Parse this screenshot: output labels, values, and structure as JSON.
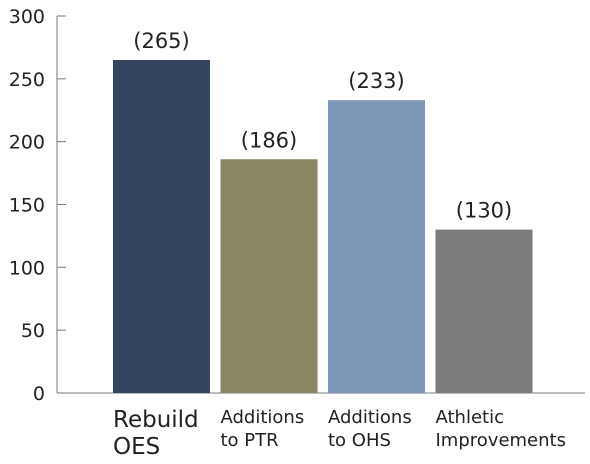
{
  "chart_data": {
    "type": "bar",
    "title": "",
    "xlabel": "",
    "ylabel": "",
    "ylim": [
      0,
      300
    ],
    "yticks": [
      0,
      50,
      100,
      150,
      200,
      250,
      300
    ],
    "grid": false,
    "categories": [
      [
        "Rebuild",
        "OES"
      ],
      [
        "Additions",
        "to PTR"
      ],
      [
        "Additions",
        "to OHS"
      ],
      [
        "Athletic",
        "Improvements"
      ]
    ],
    "values": [
      265,
      186,
      233,
      130
    ],
    "data_labels": [
      "(265)",
      "(186)",
      "(233)",
      "(130)"
    ],
    "colors": [
      "#34465f",
      "#8a8763",
      "#7c97b8",
      "#7b7b7e"
    ]
  }
}
